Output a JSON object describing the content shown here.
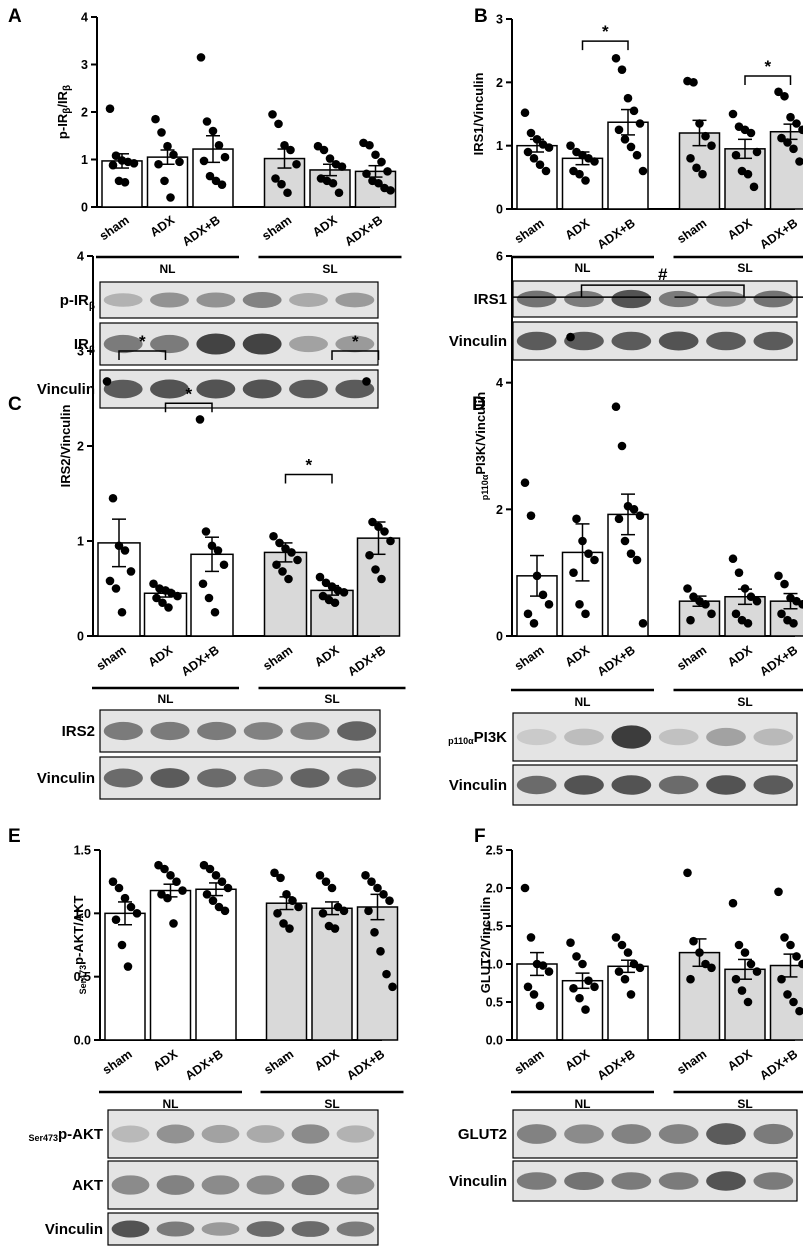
{
  "chart_data": [
    {
      "panel": "A",
      "type": "bar",
      "ylabel_parts": [
        "p-IR",
        "β",
        "/IR",
        "β"
      ],
      "ylim": [
        0,
        4
      ],
      "yticks": [
        "0",
        "1",
        "2",
        "3",
        "4"
      ],
      "categories": [
        "sham",
        "ADX",
        "ADX+B",
        "sham",
        "ADX",
        "ADX+B"
      ],
      "groups": [
        {
          "label": "NL",
          "bars": [
            0,
            1,
            2
          ]
        },
        {
          "label": "SL",
          "bars": [
            3,
            4,
            5
          ]
        }
      ],
      "fills": [
        "#ffffff",
        "#ffffff",
        "#ffffff",
        "#d9d9d9",
        "#d9d9d9",
        "#d9d9d9"
      ],
      "values": [
        0.97,
        1.05,
        1.22,
        1.02,
        0.78,
        0.75
      ],
      "errors": [
        0.15,
        0.15,
        0.28,
        0.2,
        0.12,
        0.12
      ],
      "points": [
        [
          2.07,
          1.08,
          0.98,
          0.95,
          0.92,
          0.88,
          0.55,
          0.52
        ],
        [
          1.85,
          1.57,
          1.28,
          1.1,
          0.95,
          0.9,
          0.55,
          0.2
        ],
        [
          3.15,
          1.8,
          1.6,
          1.3,
          1.05,
          0.97,
          0.65,
          0.55,
          0.47
        ],
        [
          1.95,
          1.75,
          1.3,
          1.2,
          0.9,
          0.6,
          0.48,
          0.3
        ],
        [
          1.28,
          1.2,
          1.02,
          0.9,
          0.85,
          0.6,
          0.55,
          0.5,
          0.3
        ],
        [
          1.35,
          1.3,
          1.1,
          0.95,
          0.75,
          0.7,
          0.55,
          0.5,
          0.4,
          0.35
        ]
      ],
      "blots": [
        {
          "label": "p-IR",
          "sub": "β"
        },
        {
          "label": "IR",
          "sub": "β"
        },
        {
          "label": "Vinculin",
          "sub": ""
        }
      ]
    },
    {
      "panel": "B",
      "type": "bar",
      "ylabel_parts": [
        "IRS1/Vinculin"
      ],
      "ylim": [
        0,
        3
      ],
      "yticks": [
        "0",
        "1",
        "2",
        "3"
      ],
      "categories": [
        "sham",
        "ADX",
        "ADX+B",
        "sham",
        "ADX",
        "ADX+B"
      ],
      "groups": [
        {
          "label": "NL",
          "bars": [
            0,
            1,
            2
          ]
        },
        {
          "label": "SL",
          "bars": [
            3,
            4,
            5
          ]
        }
      ],
      "fills": [
        "#ffffff",
        "#ffffff",
        "#ffffff",
        "#d9d9d9",
        "#d9d9d9",
        "#d9d9d9"
      ],
      "values": [
        1.0,
        0.8,
        1.37,
        1.2,
        0.95,
        1.22
      ],
      "errors": [
        0.1,
        0.1,
        0.2,
        0.2,
        0.15,
        0.12
      ],
      "points": [
        [
          1.52,
          1.2,
          1.1,
          1.02,
          0.97,
          0.9,
          0.8,
          0.7,
          0.6
        ],
        [
          1.0,
          0.9,
          0.85,
          0.8,
          0.75,
          0.6,
          0.55,
          0.45
        ],
        [
          2.38,
          2.2,
          1.75,
          1.55,
          1.35,
          1.25,
          1.1,
          0.98,
          0.85,
          0.6
        ],
        [
          2.02,
          2.0,
          1.35,
          1.15,
          1.0,
          0.8,
          0.65,
          0.55
        ],
        [
          1.5,
          1.3,
          1.25,
          1.2,
          0.9,
          0.85,
          0.6,
          0.55,
          0.35
        ],
        [
          1.85,
          1.78,
          1.45,
          1.35,
          1.25,
          1.12,
          1.05,
          0.95,
          0.75
        ]
      ],
      "sig": [
        {
          "from": 1,
          "to": 2,
          "y": 2.65,
          "label": "*"
        },
        {
          "from": 4,
          "to": 5,
          "y": 2.1,
          "label": "*"
        }
      ],
      "blots": [
        {
          "label": "IRS1",
          "sub": ""
        },
        {
          "label": "Vinculin",
          "sub": ""
        }
      ]
    },
    {
      "panel": "C",
      "type": "bar",
      "ylabel_parts": [
        "IRS2/Vinculin"
      ],
      "ylim": [
        0,
        4
      ],
      "yticks": [
        "0",
        "1",
        "2",
        "3",
        "4"
      ],
      "categories": [
        "sham",
        "ADX",
        "ADX+B",
        "sham",
        "ADX",
        "ADX+B"
      ],
      "groups": [
        {
          "label": "NL",
          "bars": [
            0,
            1,
            2
          ]
        },
        {
          "label": "SL",
          "bars": [
            3,
            4,
            5
          ]
        }
      ],
      "fills": [
        "#ffffff",
        "#ffffff",
        "#ffffff",
        "#d9d9d9",
        "#d9d9d9",
        "#d9d9d9"
      ],
      "values": [
        0.98,
        0.45,
        0.86,
        0.88,
        0.48,
        1.03
      ],
      "errors": [
        0.25,
        0.04,
        0.18,
        0.1,
        0.05,
        0.17
      ],
      "points": [
        [
          2.68,
          1.45,
          0.95,
          0.9,
          0.68,
          0.58,
          0.5,
          0.25
        ],
        [
          0.55,
          0.5,
          0.48,
          0.45,
          0.42,
          0.4,
          0.35,
          0.3
        ],
        [
          2.28,
          1.1,
          0.95,
          0.9,
          0.75,
          0.55,
          0.4,
          0.25
        ],
        [
          1.05,
          0.98,
          0.92,
          0.88,
          0.8,
          0.75,
          0.68,
          0.6
        ],
        [
          0.62,
          0.56,
          0.52,
          0.48,
          0.46,
          0.42,
          0.38,
          0.35
        ],
        [
          2.68,
          1.2,
          1.15,
          1.1,
          1.0,
          0.85,
          0.7,
          0.6
        ]
      ],
      "sig": [
        {
          "from": 0,
          "to": 1,
          "y": 3.0,
          "label": "*"
        },
        {
          "from": 1,
          "to": 2,
          "y": 2.45,
          "label": "*"
        },
        {
          "from": 3,
          "to": 4,
          "y": 1.7,
          "label": "*"
        },
        {
          "from": 4,
          "to": 5,
          "y": 3.0,
          "label": "*"
        }
      ],
      "blots": [
        {
          "label": "IRS2",
          "sub": ""
        },
        {
          "label": "Vinculin",
          "sub": ""
        }
      ]
    },
    {
      "panel": "D",
      "type": "bar",
      "ylabel_parts": [
        "p110α",
        "PI3K/Vinculin"
      ],
      "ylim": [
        0,
        6
      ],
      "yticks": [
        "0",
        "2",
        "4",
        "6"
      ],
      "categories": [
        "sham",
        "ADX",
        "ADX+B",
        "sham",
        "ADX",
        "ADX+B"
      ],
      "groups": [
        {
          "label": "NL",
          "bars": [
            0,
            1,
            2
          ]
        },
        {
          "label": "SL",
          "bars": [
            3,
            4,
            5
          ]
        }
      ],
      "fills": [
        "#ffffff",
        "#ffffff",
        "#ffffff",
        "#d9d9d9",
        "#d9d9d9",
        "#d9d9d9"
      ],
      "values": [
        0.95,
        1.32,
        1.92,
        0.55,
        0.62,
        0.55
      ],
      "errors": [
        0.32,
        0.45,
        0.32,
        0.08,
        0.12,
        0.12
      ],
      "points": [
        [
          2.42,
          1.9,
          0.95,
          0.65,
          0.5,
          0.35,
          0.2
        ],
        [
          4.72,
          1.85,
          1.5,
          1.3,
          1.2,
          1.0,
          0.5,
          0.35
        ],
        [
          3.62,
          3.0,
          2.05,
          2.0,
          1.9,
          1.85,
          1.5,
          1.3,
          1.2,
          0.2
        ],
        [
          0.75,
          0.62,
          0.55,
          0.5,
          0.35,
          0.25
        ],
        [
          1.22,
          1.0,
          0.75,
          0.62,
          0.55,
          0.35,
          0.25,
          0.2
        ],
        [
          0.95,
          0.82,
          0.6,
          0.55,
          0.5,
          0.35,
          0.25,
          0.2
        ]
      ],
      "hash": {
        "left_from": 0,
        "left_to": 2,
        "right_from": 3,
        "right_to": 5,
        "y": 5.35,
        "label": "#"
      },
      "blots": [
        {
          "label": "PI3K",
          "pre": "p110α"
        },
        {
          "label": "Vinculin",
          "sub": ""
        }
      ]
    },
    {
      "panel": "E",
      "type": "bar",
      "ylabel_parts": [
        "Ser473",
        "p-AKT/AKT"
      ],
      "ylim": [
        0,
        1.5
      ],
      "yticks": [
        "0.0",
        "0.5",
        "1.0",
        "1.5"
      ],
      "categories": [
        "sham",
        "ADX",
        "ADX+B",
        "sham",
        "ADX",
        "ADX+B"
      ],
      "groups": [
        {
          "label": "NL",
          "bars": [
            0,
            1,
            2
          ]
        },
        {
          "label": "SL",
          "bars": [
            3,
            4,
            5
          ]
        }
      ],
      "fills": [
        "#ffffff",
        "#ffffff",
        "#ffffff",
        "#d9d9d9",
        "#d9d9d9",
        "#d9d9d9"
      ],
      "values": [
        1.0,
        1.18,
        1.19,
        1.08,
        1.04,
        1.05
      ],
      "errors": [
        0.09,
        0.05,
        0.05,
        0.05,
        0.05,
        0.1
      ],
      "points": [
        [
          1.25,
          1.2,
          1.12,
          1.05,
          1.0,
          0.95,
          0.75,
          0.58
        ],
        [
          1.38,
          1.35,
          1.3,
          1.25,
          1.18,
          1.15,
          1.12,
          0.92
        ],
        [
          1.38,
          1.35,
          1.3,
          1.25,
          1.2,
          1.15,
          1.1,
          1.05,
          1.02
        ],
        [
          1.32,
          1.28,
          1.15,
          1.1,
          1.05,
          1.0,
          0.92,
          0.88
        ],
        [
          1.3,
          1.25,
          1.2,
          1.05,
          1.02,
          1.0,
          0.9,
          0.88
        ],
        [
          1.3,
          1.25,
          1.2,
          1.15,
          1.1,
          1.02,
          0.85,
          0.7,
          0.52,
          0.42
        ]
      ],
      "blots": [
        {
          "label": "p-AKT",
          "pre": "Ser473"
        },
        {
          "label": "AKT",
          "sub": ""
        },
        {
          "label": "Vinculin",
          "sub": ""
        }
      ]
    },
    {
      "panel": "F",
      "type": "bar",
      "ylabel_parts": [
        "GLUT2/Vinculin"
      ],
      "ylim": [
        0,
        2.5
      ],
      "yticks": [
        "0.0",
        "0.5",
        "1.0",
        "1.5",
        "2.0",
        "2.5"
      ],
      "categories": [
        "sham",
        "ADX",
        "ADX+B",
        "sham",
        "ADX",
        "ADX+B"
      ],
      "groups": [
        {
          "label": "NL",
          "bars": [
            0,
            1,
            2
          ]
        },
        {
          "label": "SL",
          "bars": [
            3,
            4,
            5
          ]
        }
      ],
      "fills": [
        "#ffffff",
        "#ffffff",
        "#ffffff",
        "#d9d9d9",
        "#d9d9d9",
        "#d9d9d9"
      ],
      "values": [
        1.0,
        0.78,
        0.97,
        1.15,
        0.93,
        0.98
      ],
      "errors": [
        0.15,
        0.1,
        0.08,
        0.18,
        0.13,
        0.15
      ],
      "points": [
        [
          2.0,
          1.35,
          1.0,
          0.98,
          0.9,
          0.7,
          0.6,
          0.45
        ],
        [
          1.28,
          1.1,
          1.0,
          0.78,
          0.7,
          0.68,
          0.55,
          0.4
        ],
        [
          1.35,
          1.25,
          1.15,
          1.0,
          0.95,
          0.9,
          0.8,
          0.6
        ],
        [
          2.2,
          1.3,
          1.15,
          1.0,
          0.95,
          0.8
        ],
        [
          1.8,
          1.25,
          1.15,
          1.0,
          0.9,
          0.8,
          0.65,
          0.5
        ],
        [
          1.95,
          1.35,
          1.25,
          1.1,
          1.0,
          0.8,
          0.6,
          0.5,
          0.38
        ]
      ],
      "blots": [
        {
          "label": "GLUT2",
          "sub": ""
        },
        {
          "label": "Vinculin",
          "sub": ""
        }
      ]
    }
  ]
}
